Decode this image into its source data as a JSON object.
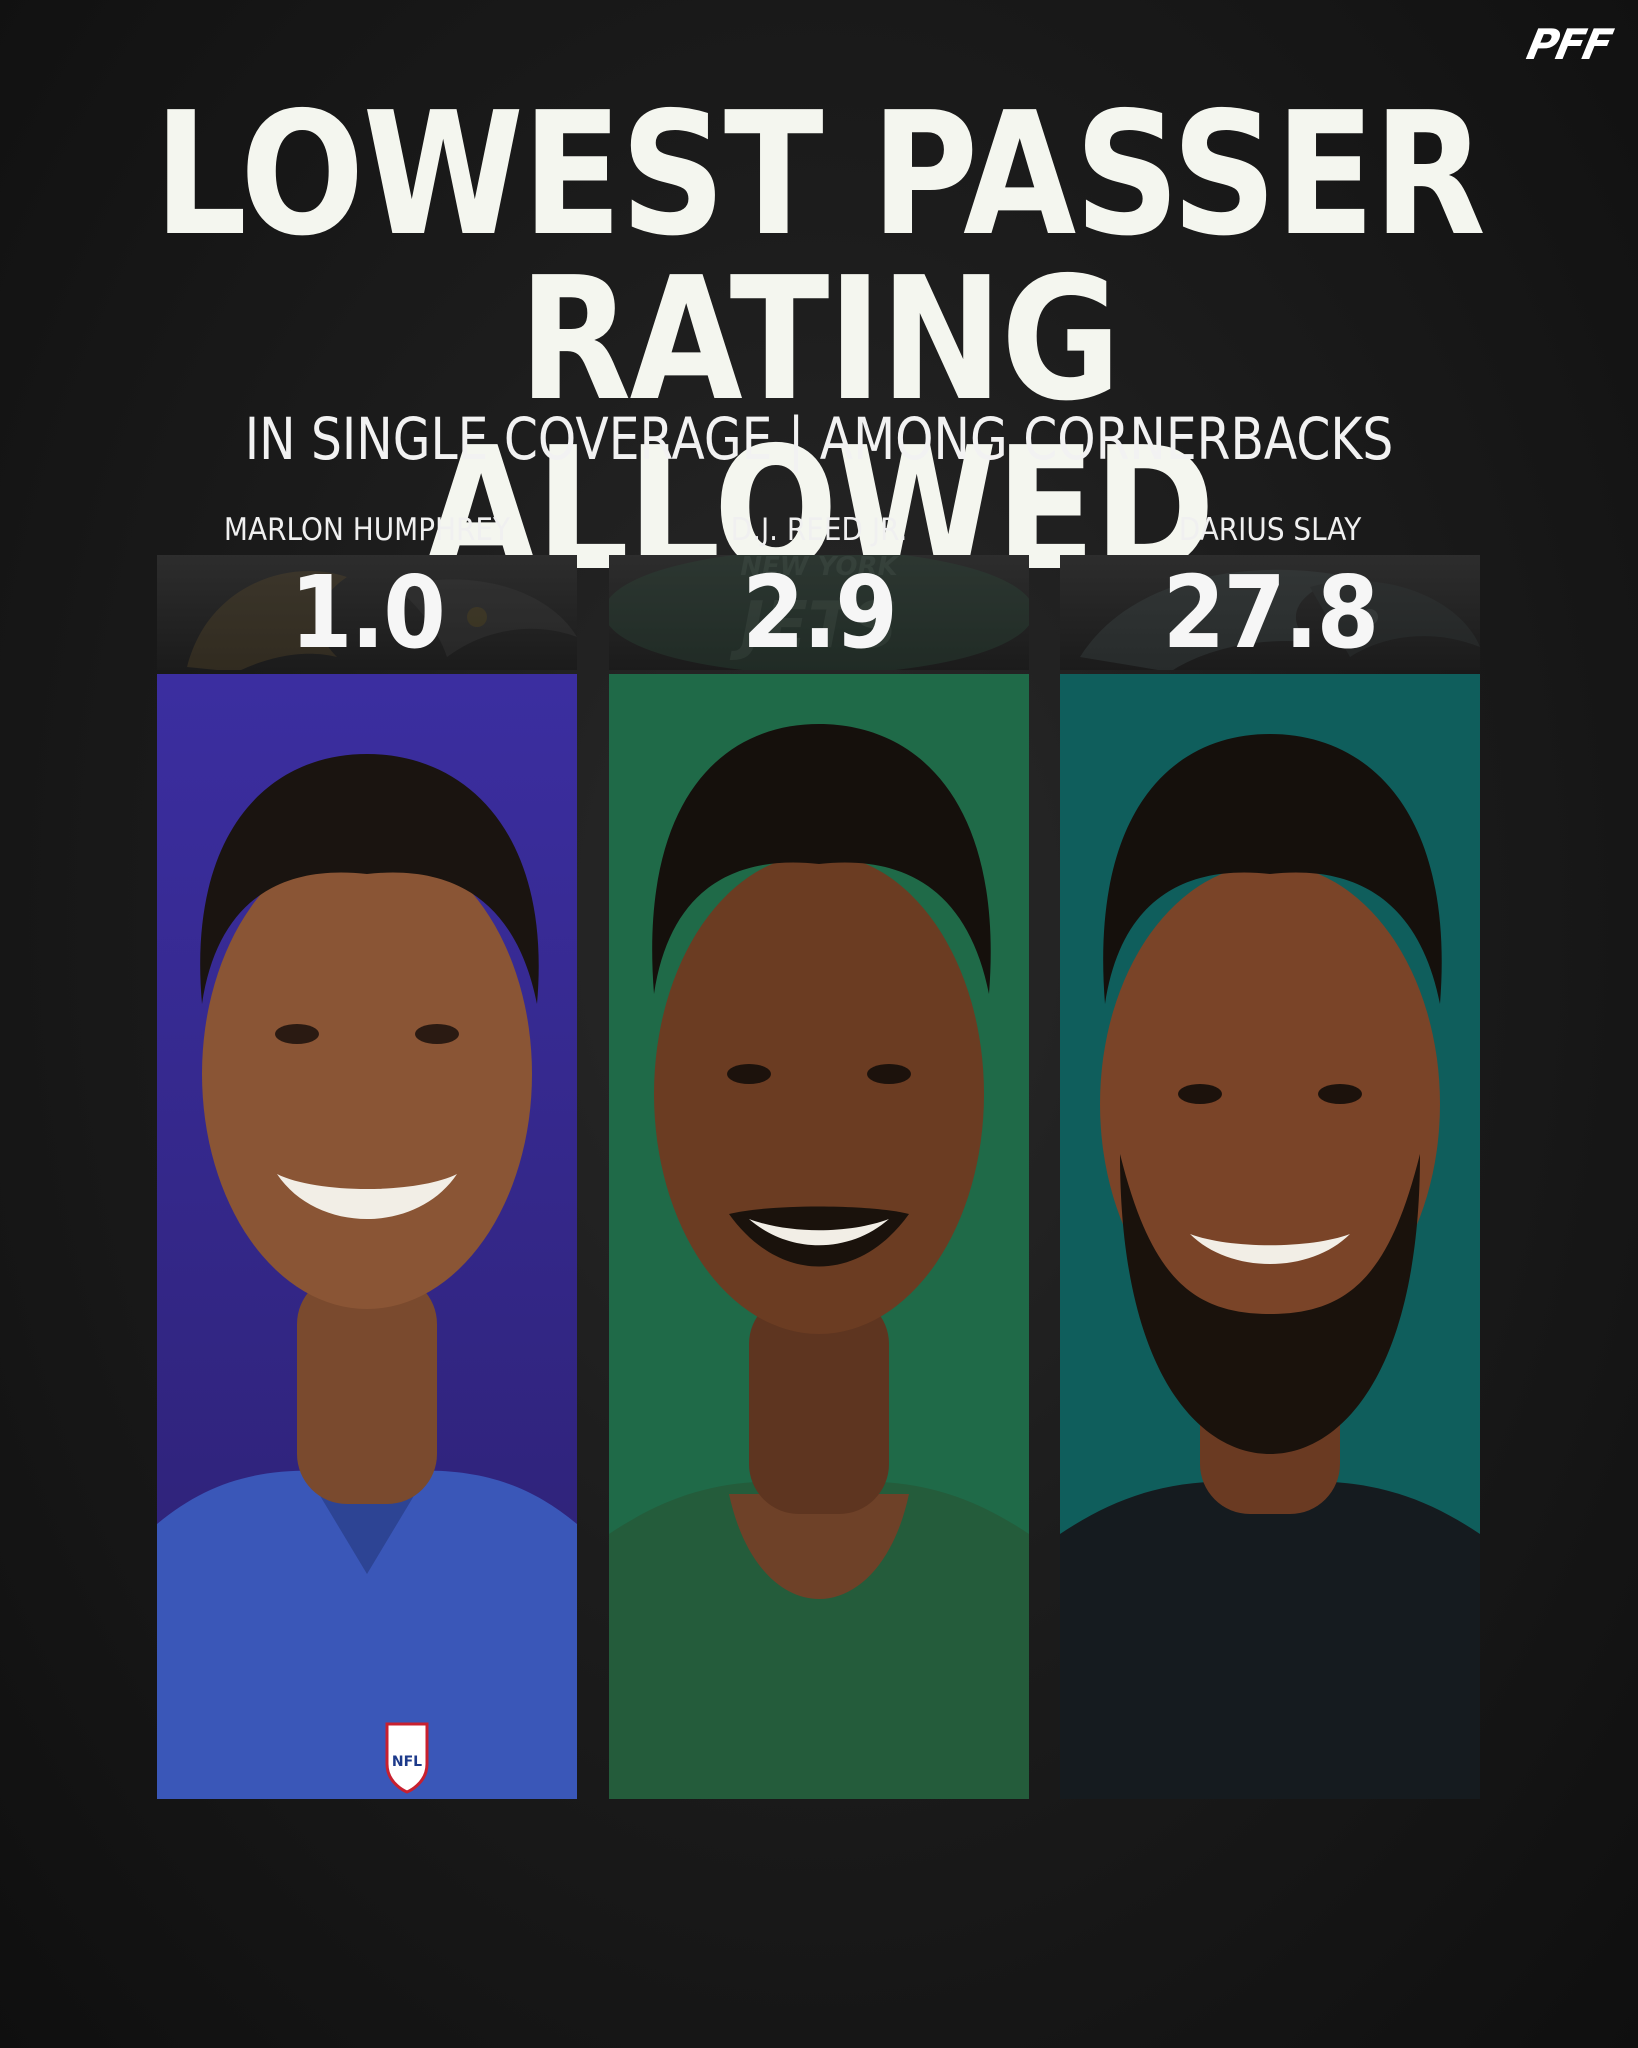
{
  "brand": {
    "logo_text": "PFF"
  },
  "title": {
    "line1": "LOWEST PASSER",
    "line2": "RATING ALLOWED"
  },
  "subtitle": "IN SINGLE COVERAGE | AMONG CORNERBACKS",
  "players": [
    {
      "name": "MARLON HUMPHREY",
      "value": "1.0",
      "team_mark_text": "",
      "bg_color": "#3d2b9b",
      "jersey_color": "#3a57b8",
      "jersey_logo": "NFL"
    },
    {
      "name": "D.J. REED JR.",
      "value": "2.9",
      "team_mark_text": "NEW YORK",
      "team_mark_text2": "JETS",
      "bg_color": "#1f6a48",
      "jersey_color": "#245c3b"
    },
    {
      "name": "DARIUS SLAY",
      "value": "27.8",
      "team_mark_text": "",
      "bg_color": "#0f5e5c",
      "jersey_color": "#151b1f"
    }
  ]
}
